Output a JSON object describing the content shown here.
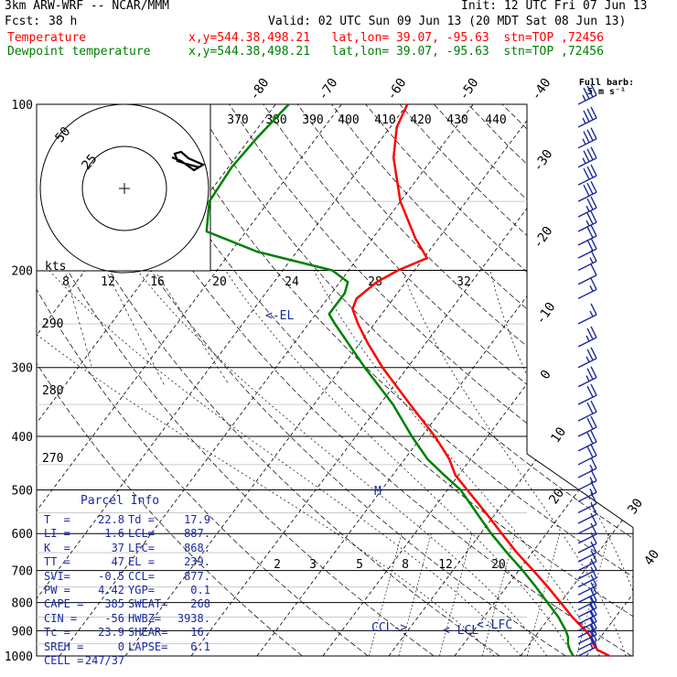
{
  "header": {
    "line1_left": "3km ARW-WRF -- NCAR/MMM",
    "line1_right": "Init: 12 UTC Fri 07 Jun 13",
    "fcst_label": "Fcst:",
    "fcst_value": "38 h",
    "valid": "Valid: 02 UTC Sun 09 Jun 13 (20 MDT Sat 08 Jun 13)",
    "temp_label": "Temperature",
    "temp_info": "x,y=544.38,498.21   lat,lon= 39.07, -95.63  stn=TOP ,72456",
    "dew_label": "Dewpoint temperature",
    "dew_info": "x,y=544.38,498.21   lat,lon= 39.07, -95.63  stn=TOP ,72456"
  },
  "colors": {
    "temperature": "#ff0000",
    "dewpoint": "#008000",
    "parcel": "#1a2aa0",
    "barbs": "#1a2aa0"
  },
  "wind_barb_label": "Full barb:\n5 m s⁻¹",
  "parcel_info": {
    "title": "Parcel Info",
    "rows": [
      [
        "T  =",
        "22.8",
        "Td =",
        "17.9"
      ],
      [
        "LI =",
        "-1.6",
        "LCL=",
        "887."
      ],
      [
        "K  =",
        "37",
        "LFC=",
        "868."
      ],
      [
        "TT =",
        "47",
        "EL =",
        "239."
      ],
      [
        "SVI=",
        "-0.5",
        "CCL=",
        "877."
      ],
      [
        "PW =",
        "4.42",
        "YGP=",
        "0.1"
      ],
      [
        "CAPE =",
        "385",
        "SWEAT=",
        "268"
      ],
      [
        "CIN =",
        "-56",
        "HWBZ=",
        "3938."
      ],
      [
        "Tc =",
        "23.9",
        "SHEAR=",
        "16."
      ],
      [
        "SREH =",
        "0",
        "LAPSE=",
        "6.1"
      ],
      [
        "CELL =",
        "247/37",
        "",
        ""
      ]
    ]
  },
  "chart_data": {
    "type": "line",
    "title": "",
    "y_axis": "pressure (hPa)",
    "pressure_ticks": [
      100,
      200,
      300,
      400,
      500,
      600,
      700,
      800,
      900,
      1000
    ],
    "isotherm_labels": [
      "-80",
      "-70",
      "-60",
      "-50",
      "-40",
      "-30",
      "-20",
      "-10",
      "0",
      "10",
      "20",
      "30",
      "40"
    ],
    "theta_labels": [
      "370",
      "380",
      "390",
      "400",
      "410",
      "420",
      "430",
      "440"
    ],
    "theta_side_labels": [
      "290",
      "280",
      "270"
    ],
    "mixing_ratio_labels": [
      "2",
      "3",
      "5",
      "8",
      "12",
      "20"
    ],
    "hodograph": {
      "ring_labels": [
        "25",
        "50"
      ],
      "speed_axis_label": "kts",
      "speed_ticks": [
        "8",
        "12",
        "16",
        "20",
        "24",
        "28",
        "32"
      ]
    },
    "levels_labels": [
      "EL",
      "LFC",
      "LCL",
      "CCL"
    ],
    "parcel_marker": "M",
    "series": [
      {
        "name": "Temperature",
        "points": [
          [
            1000,
            23.5
          ],
          [
            975,
            21.0
          ],
          [
            950,
            19.6
          ],
          [
            925,
            18.6
          ],
          [
            900,
            17.0
          ],
          [
            850,
            13.4
          ],
          [
            800,
            10.0
          ],
          [
            750,
            6.3
          ],
          [
            700,
            2.2
          ],
          [
            650,
            -2.3
          ],
          [
            600,
            -6.8
          ],
          [
            550,
            -11.6
          ],
          [
            500,
            -17.0
          ],
          [
            470,
            -20.5
          ],
          [
            440,
            -23.2
          ],
          [
            400,
            -28.0
          ],
          [
            350,
            -35.4
          ],
          [
            300,
            -43.8
          ],
          [
            270,
            -49.0
          ],
          [
            250,
            -52.5
          ],
          [
            235,
            -55.0
          ],
          [
            225,
            -55.6
          ],
          [
            210,
            -54.4
          ],
          [
            200,
            -52.5
          ],
          [
            190,
            -49.5
          ],
          [
            175,
            -53.5
          ],
          [
            150,
            -60.0
          ],
          [
            125,
            -66.0
          ],
          [
            110,
            -69.0
          ],
          [
            100,
            -70.0
          ]
        ]
      },
      {
        "name": "Dewpoint temperature",
        "points": [
          [
            1000,
            18.0
          ],
          [
            975,
            16.8
          ],
          [
            950,
            15.8
          ],
          [
            925,
            15.1
          ],
          [
            900,
            14.0
          ],
          [
            850,
            11.3
          ],
          [
            800,
            8.0
          ],
          [
            750,
            4.5
          ],
          [
            700,
            0.6
          ],
          [
            650,
            -3.8
          ],
          [
            600,
            -8.4
          ],
          [
            550,
            -13.0
          ],
          [
            500,
            -18.0
          ],
          [
            470,
            -22.2
          ],
          [
            440,
            -26.5
          ],
          [
            400,
            -31.5
          ],
          [
            350,
            -38.0
          ],
          [
            300,
            -46.5
          ],
          [
            270,
            -52.0
          ],
          [
            250,
            -56.0
          ],
          [
            240,
            -58.0
          ],
          [
            220,
            -58.0
          ],
          [
            210,
            -58.8
          ],
          [
            200,
            -62.5
          ],
          [
            185,
            -76.0
          ],
          [
            170,
            -86.0
          ],
          [
            150,
            -89.0
          ],
          [
            130,
            -89.5
          ],
          [
            115,
            -89.0
          ],
          [
            100,
            -88.0
          ]
        ]
      }
    ],
    "wind_barbs_kt": [
      [
        1000,
        15
      ],
      [
        975,
        15
      ],
      [
        950,
        15
      ],
      [
        925,
        15
      ],
      [
        900,
        15
      ],
      [
        875,
        15
      ],
      [
        850,
        15
      ],
      [
        825,
        15
      ],
      [
        800,
        10
      ],
      [
        775,
        10
      ],
      [
        750,
        10
      ],
      [
        725,
        10
      ],
      [
        700,
        10
      ],
      [
        675,
        10
      ],
      [
        650,
        10
      ],
      [
        625,
        10
      ],
      [
        600,
        10
      ],
      [
        575,
        10
      ],
      [
        550,
        10
      ],
      [
        525,
        15
      ],
      [
        500,
        15
      ],
      [
        475,
        15
      ],
      [
        450,
        20
      ],
      [
        425,
        20
      ],
      [
        400,
        20
      ],
      [
        375,
        20
      ],
      [
        350,
        20
      ],
      [
        325,
        25
      ],
      [
        300,
        25
      ],
      [
        275,
        25
      ],
      [
        250,
        15
      ],
      [
        225,
        15
      ],
      [
        212,
        10
      ],
      [
        200,
        15
      ],
      [
        190,
        20
      ],
      [
        180,
        20
      ],
      [
        170,
        25
      ],
      [
        160,
        25
      ],
      [
        150,
        30
      ],
      [
        140,
        30
      ],
      [
        130,
        35
      ],
      [
        120,
        35
      ],
      [
        110,
        35
      ],
      [
        100,
        35
      ]
    ],
    "ylim": [
      1000,
      100
    ]
  }
}
